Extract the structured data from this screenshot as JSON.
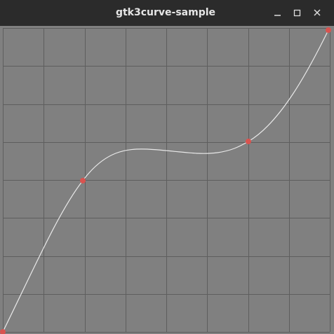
{
  "window": {
    "title": "gtk3curve-sample"
  }
}
